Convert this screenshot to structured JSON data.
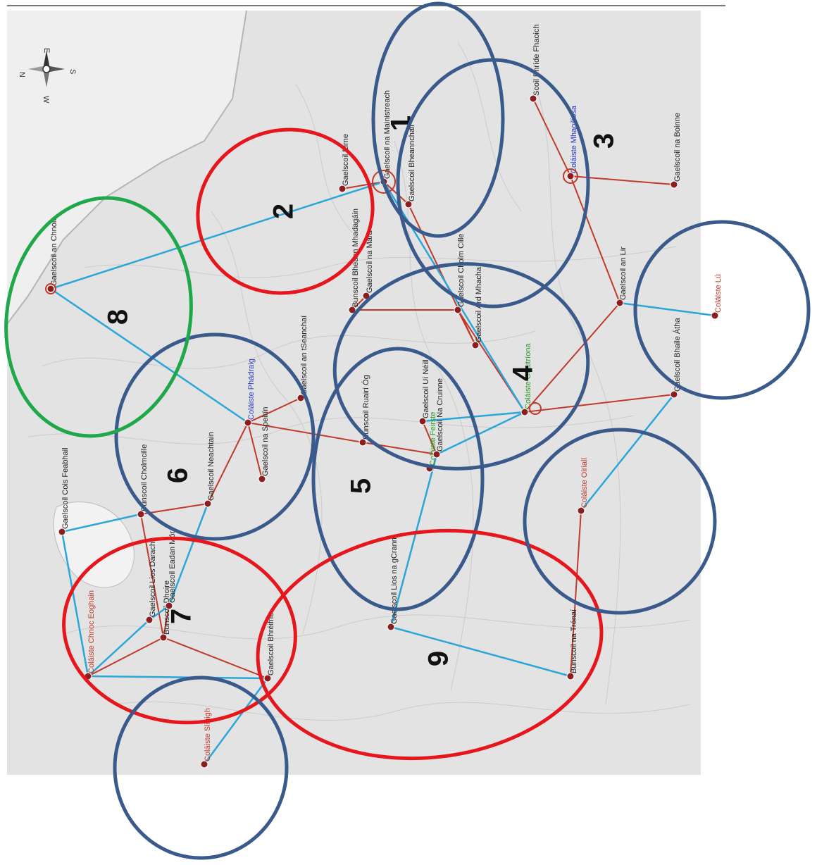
{
  "colors": {
    "map_background": "#d9d9d9",
    "red_route": "#c0392b",
    "blue_route": "#2aa7d8",
    "circle_blue": "#3a5a8c",
    "circle_red": "#e5161c",
    "circle_green": "#1fa84a",
    "label_dark": "#222222",
    "label_red": "#c0392b",
    "label_blue": "#2a3cc9",
    "label_green": "#2e9a2e",
    "label_orange": "#c98a1a"
  },
  "compass": {
    "north": "N",
    "east": "E",
    "south": "S",
    "west": "W"
  },
  "zones": [
    {
      "number": "1",
      "color": "blue"
    },
    {
      "number": "2",
      "color": "red"
    },
    {
      "number": "3",
      "color": "blue"
    },
    {
      "number": "4",
      "color": "blue"
    },
    {
      "number": "5",
      "color": "blue"
    },
    {
      "number": "6",
      "color": "blue"
    },
    {
      "number": "7",
      "color": "red"
    },
    {
      "number": "8",
      "color": "green"
    },
    {
      "number": "9",
      "color": "red"
    },
    {
      "number": "",
      "color": "blue"
    },
    {
      "number": "",
      "color": "blue"
    },
    {
      "number": "",
      "color": "blue"
    }
  ],
  "places": [
    {
      "name": "Gaelscoil an Chnoic",
      "color": "dark"
    },
    {
      "name": "Gaelscoil Eirne",
      "color": "dark"
    },
    {
      "name": "Gaelscoil na Mainistreach",
      "color": "dark"
    },
    {
      "name": "Scoil Bhríde Fhaoich",
      "color": "dark"
    },
    {
      "name": "Coláiste Mhaoilíosa",
      "color": "blue"
    },
    {
      "name": "Gaelscoil na Boinne",
      "color": "dark"
    },
    {
      "name": "Gaelscoil an Lir",
      "color": "dark"
    },
    {
      "name": "Coláiste Lú",
      "color": "red"
    },
    {
      "name": "Gaelscoil Cholm Cille",
      "color": "dark"
    },
    {
      "name": "Gaelscoil Uí Néill",
      "color": "dark"
    },
    {
      "name": "Coláiste Chaitríona",
      "color": "green"
    },
    {
      "name": "Gaelscoil Bhaile Átha",
      "color": "dark"
    },
    {
      "name": "Coláiste Oiriall",
      "color": "red"
    },
    {
      "name": "Gaelscoil Na Cruinne",
      "color": "dark"
    },
    {
      "name": "Bunscoil Ruairí Óg",
      "color": "dark"
    },
    {
      "name": "Coláiste Feirste",
      "color": "green"
    },
    {
      "name": "Gaelscoil Ard Mhacha",
      "color": "dark"
    },
    {
      "name": "Coláiste Phádraig",
      "color": "blue"
    },
    {
      "name": "Gaelscoil na Speirín",
      "color": "dark"
    },
    {
      "name": "Gaelscoil Neachtain",
      "color": "dark"
    },
    {
      "name": "Gaelscoil Lios na gCrann",
      "color": "dark"
    },
    {
      "name": "Bunscoil Dhoire",
      "color": "dark"
    },
    {
      "name": "Coláiste Chnoc Eoghain",
      "color": "red"
    },
    {
      "name": "Gaelscoil Cois Feabhail",
      "color": "dark"
    },
    {
      "name": "Gaelscoil Eadan Mór",
      "color": "dark"
    },
    {
      "name": "Bunscoil Cholmcille",
      "color": "dark"
    },
    {
      "name": "Gaelscoil an tSeanchaí",
      "color": "dark"
    },
    {
      "name": "Gaelscoil Lios Darach",
      "color": "dark"
    },
    {
      "name": "Bunscoil na Trónaí",
      "color": "dark"
    },
    {
      "name": "Coláiste Sligigh",
      "color": "red"
    },
    {
      "name": "Gaelscoil Bhréifne",
      "color": "dark"
    },
    {
      "name": "Gaelscoil Bheannchair",
      "color": "dark"
    },
    {
      "name": "Gaelscoil na Mara",
      "color": "dark"
    },
    {
      "name": "Bunscoil Bheann Mhadagáin",
      "color": "dark"
    }
  ]
}
